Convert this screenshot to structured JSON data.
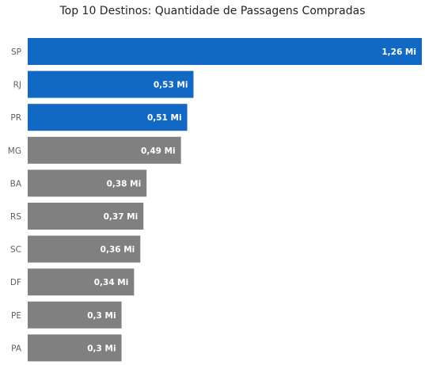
{
  "chart_data": {
    "type": "bar",
    "orientation": "horizontal",
    "title": "Top 10 Destinos: Quantidade de Passagens Compradas",
    "categories": [
      "SP",
      "RJ",
      "PR",
      "MG",
      "BA",
      "RS",
      "SC",
      "DF",
      "PE",
      "PA"
    ],
    "values": [
      1.26,
      0.53,
      0.51,
      0.49,
      0.38,
      0.37,
      0.36,
      0.34,
      0.3,
      0.3
    ],
    "value_labels": [
      "1,26 Mi",
      "0,53 Mi",
      "0,51 Mi",
      "0,49 Mi",
      "0,38 Mi",
      "0,37 Mi",
      "0,36 Mi",
      "0,34 Mi",
      "0,3 Mi",
      "0,3 Mi"
    ],
    "highlight_count": 3,
    "colors": {
      "highlight": "#1169c4",
      "default": "#808080"
    },
    "xlim": [
      0,
      1.26
    ],
    "grid": false,
    "legend": "none"
  }
}
